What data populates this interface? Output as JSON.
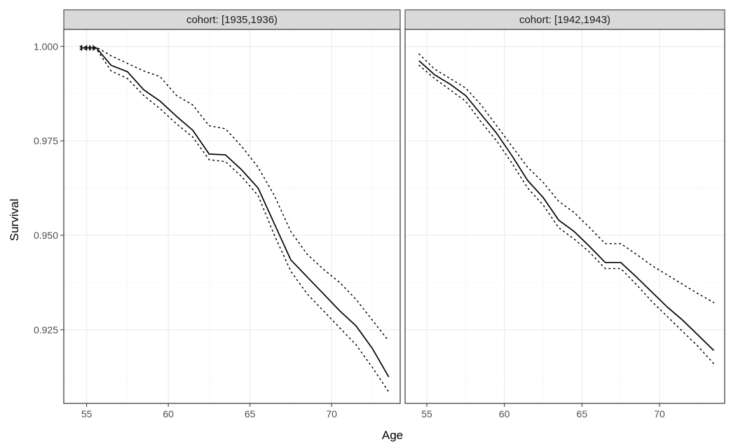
{
  "chart_data": {
    "type": "line",
    "xlabel": "Age",
    "ylabel": "Survival",
    "xlim": [
      53.6,
      74.2
    ],
    "ylim": [
      0.9055,
      1.0045
    ],
    "x_ticks": [
      55,
      60,
      65,
      70
    ],
    "y_ticks": [
      0.925,
      0.95,
      0.975,
      1.0
    ],
    "y_tick_labels": [
      "0.925",
      "0.950",
      "0.975",
      "1.000"
    ],
    "grid": true,
    "legend": "none",
    "panels": [
      {
        "strip": "cohort: [1935,1936)",
        "survival": {
          "x": [
            54.6,
            55.6,
            56.5,
            57.5,
            58.5,
            59.5,
            60.5,
            61.5,
            62.5,
            63.5,
            64.5,
            65.5,
            66.5,
            67.5,
            68.5,
            69.5,
            70.5,
            71.5,
            72.5,
            73.5
          ],
          "y": [
            0.9996,
            0.9996,
            0.995,
            0.9933,
            0.9885,
            0.9855,
            0.9815,
            0.9778,
            0.9715,
            0.9713,
            0.9673,
            0.9625,
            0.953,
            0.9435,
            0.939,
            0.9345,
            0.93,
            0.926,
            0.92,
            0.9125
          ]
        },
        "upper": {
          "x": [
            54.6,
            55.6,
            56.5,
            57.5,
            58.5,
            59.5,
            60.5,
            61.5,
            62.5,
            63.5,
            64.5,
            65.5,
            66.5,
            67.5,
            68.5,
            69.5,
            70.5,
            71.5,
            72.5,
            73.5
          ],
          "y": [
            1.0,
            0.9998,
            0.9975,
            0.9955,
            0.9935,
            0.992,
            0.987,
            0.9845,
            0.979,
            0.9782,
            0.9735,
            0.968,
            0.9605,
            0.951,
            0.945,
            0.941,
            0.9375,
            0.933,
            0.9275,
            0.922
          ]
        },
        "lower": {
          "x": [
            54.6,
            55.6,
            56.5,
            57.5,
            58.5,
            59.5,
            60.5,
            61.5,
            62.5,
            63.5,
            64.5,
            65.5,
            66.5,
            67.5,
            68.5,
            69.5,
            70.5,
            71.5,
            72.5,
            73.5
          ],
          "y": [
            0.9992,
            0.9993,
            0.9935,
            0.9915,
            0.987,
            0.9835,
            0.9795,
            0.976,
            0.97,
            0.9695,
            0.9655,
            0.9605,
            0.95,
            0.9405,
            0.9345,
            0.93,
            0.9255,
            0.921,
            0.915,
            0.9085
          ]
        },
        "censor_marks": {
          "x": [
            54.7,
            55.0,
            55.2,
            55.4
          ],
          "y": [
            0.9996,
            0.9996,
            0.9996,
            0.9996
          ]
        }
      },
      {
        "strip": "cohort: [1942,1943)",
        "survival": {
          "x": [
            54.5,
            55.5,
            56.5,
            57.5,
            58.5,
            59.5,
            60.5,
            61.5,
            62.5,
            63.5,
            64.5,
            65.5,
            66.5,
            67.5,
            68.5,
            69.5,
            70.5,
            71.5,
            72.5,
            73.5
          ],
          "y": [
            0.9962,
            0.9925,
            0.99,
            0.987,
            0.982,
            0.977,
            0.971,
            0.9645,
            0.96,
            0.954,
            0.951,
            0.947,
            0.9428,
            0.9428,
            0.939,
            0.935,
            0.931,
            0.9275,
            0.9235,
            0.9195
          ]
        },
        "upper": {
          "x": [
            54.5,
            55.5,
            56.5,
            57.5,
            58.5,
            59.5,
            60.5,
            61.5,
            62.5,
            63.5,
            64.5,
            65.5,
            66.5,
            67.5,
            68.5,
            69.5,
            70.5,
            71.5,
            72.5,
            73.5
          ],
          "y": [
            0.998,
            0.994,
            0.9915,
            0.989,
            0.9845,
            0.979,
            0.9735,
            0.968,
            0.964,
            0.959,
            0.956,
            0.952,
            0.9478,
            0.9478,
            0.945,
            0.942,
            0.9395,
            0.937,
            0.9345,
            0.9322
          ]
        },
        "lower": {
          "x": [
            54.5,
            55.5,
            56.5,
            57.5,
            58.5,
            59.5,
            60.5,
            61.5,
            62.5,
            63.5,
            64.5,
            65.5,
            66.5,
            67.5,
            68.5,
            69.5,
            70.5,
            71.5,
            72.5,
            73.5
          ],
          "y": [
            0.995,
            0.9915,
            0.9885,
            0.9855,
            0.98,
            0.975,
            0.969,
            0.9625,
            0.958,
            0.952,
            0.949,
            0.9455,
            0.9412,
            0.9412,
            0.937,
            0.9325,
            0.9285,
            0.9245,
            0.9205,
            0.916
          ]
        },
        "censor_marks": {
          "x": [],
          "y": []
        }
      }
    ]
  }
}
